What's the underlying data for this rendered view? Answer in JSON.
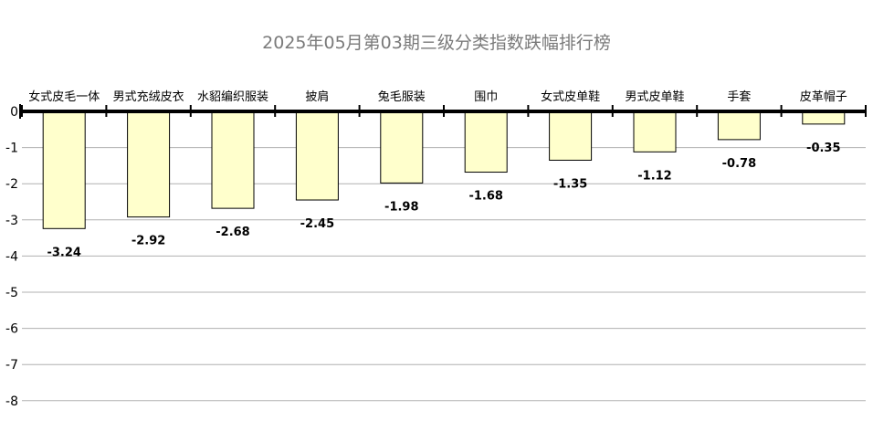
{
  "chart_data": {
    "type": "bar",
    "title": "2025年05月第03期三级分类指数跌幅排行榜",
    "categories": [
      "女式皮毛一体",
      "男式充绒皮衣",
      "水貂编织服装",
      "披肩",
      "兔毛服装",
      "围巾",
      "女式皮单鞋",
      "男式皮单鞋",
      "手套",
      "皮革帽子"
    ],
    "values": [
      -3.24,
      -2.92,
      -2.68,
      -2.45,
      -1.98,
      -1.68,
      -1.35,
      -1.12,
      -0.78,
      -0.35
    ],
    "value_labels": [
      "-3.24",
      "-2.92",
      "-2.68",
      "-2.45",
      "-1.98",
      "-1.68",
      "-1.35",
      "-1.12",
      "-0.78",
      "-0.35"
    ],
    "y_ticks": [
      0,
      -1,
      -2,
      -3,
      -4,
      -5,
      -6,
      -7,
      -8
    ],
    "ylim": [
      -8,
      0
    ],
    "grid": true,
    "bar_color": "#ffffcc",
    "bar_stroke": "#000000",
    "grid_color": "#b0b0b0"
  }
}
